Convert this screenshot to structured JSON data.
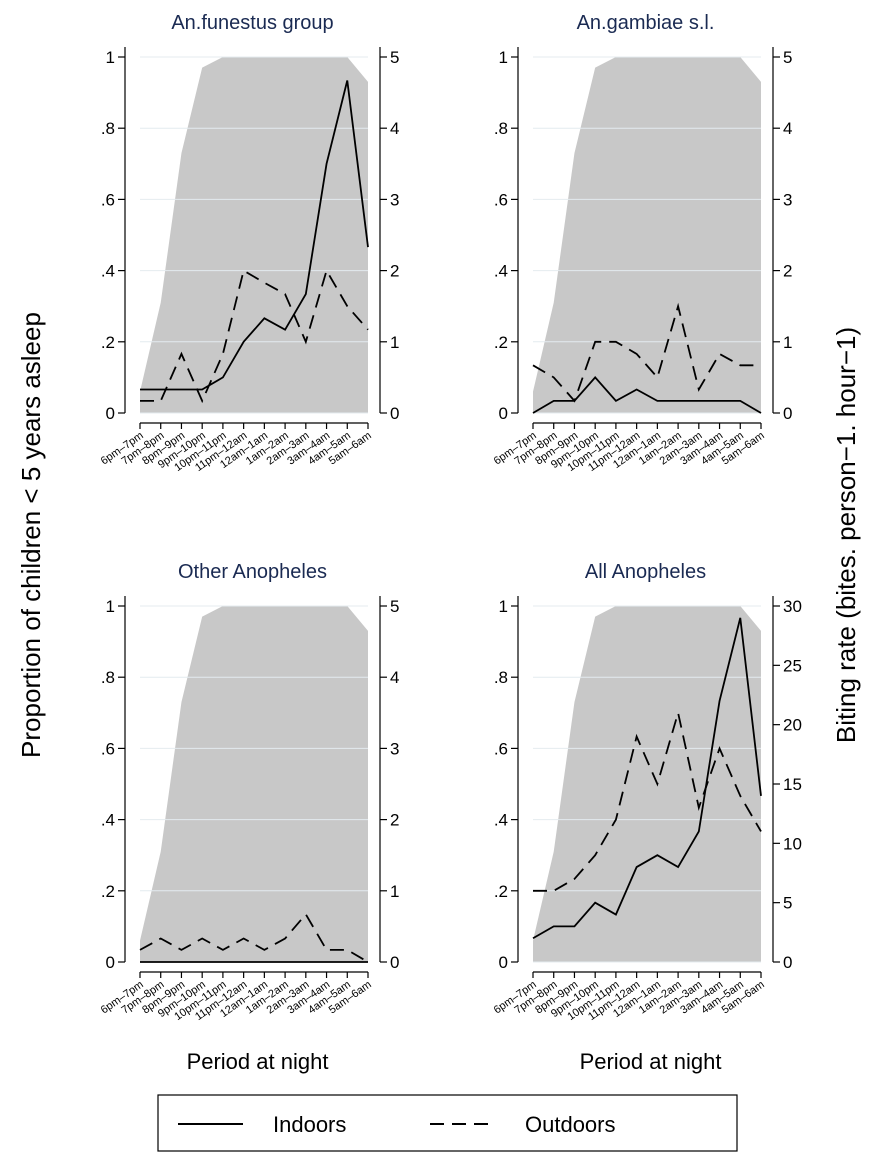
{
  "ylabel": "Proportion of children < 5 years asleep",
  "y2label": "Biting rate (bites. person−1. hour−1)",
  "chart_data": [
    {
      "type": "line",
      "title": "An.funestus group",
      "categories": [
        "6pm–7pm",
        "7pm–8pm",
        "8pm–9pm",
        "9pm–10pm",
        "10pm–11pm",
        "11pm–12am",
        "12am–1am",
        "1am–2am",
        "2am–3am",
        "3am–4am",
        "4am–5am",
        "5am–6am"
      ],
      "area": {
        "color": "#c8c8c8",
        "values": [
          0.06,
          0.31,
          0.73,
          0.97,
          1,
          1,
          1,
          1,
          1,
          1,
          1,
          0.93
        ]
      },
      "series": [
        {
          "name": "Indoors",
          "color": "#000000",
          "dash": false,
          "axis": "y2",
          "values": [
            0.33,
            0.33,
            0.33,
            0.33,
            0.5,
            1.0,
            1.33,
            1.17,
            1.67,
            3.5,
            4.67,
            2.33
          ]
        },
        {
          "name": "Outdoors",
          "color": "#000000",
          "dash": true,
          "axis": "y2",
          "values": [
            0.17,
            0.17,
            0.83,
            0.17,
            0.83,
            2.0,
            1.83,
            1.67,
            1.0,
            2.0,
            1.5,
            1.17
          ]
        }
      ],
      "ylim": [
        0,
        1
      ],
      "yticks": [
        0,
        {
          "value": 0.2,
          "label": ".2"
        },
        {
          "value": 0.4,
          "label": ".4"
        },
        {
          "value": 0.6,
          "label": ".6"
        },
        {
          "value": 0.8,
          "label": ".8"
        },
        1
      ],
      "y2lim": [
        0,
        5
      ],
      "y2ticks": [
        0,
        1,
        2,
        3,
        4,
        5
      ],
      "grid": true
    },
    {
      "type": "line",
      "title": "An.gambiae s.l.",
      "categories": [
        "6pm–7pm",
        "7pm–8pm",
        "8pm–9pm",
        "9pm–10pm",
        "10pm–11pm",
        "11pm–12am",
        "12am–1am",
        "1am–2am",
        "2am–3am",
        "3am–4am",
        "4am–5am",
        "5am–6am"
      ],
      "area": {
        "color": "#c8c8c8",
        "values": [
          0.06,
          0.31,
          0.73,
          0.97,
          1,
          1,
          1,
          1,
          1,
          1,
          1,
          0.93
        ]
      },
      "series": [
        {
          "name": "Indoors",
          "color": "#000000",
          "dash": false,
          "axis": "y2",
          "values": [
            0,
            0.17,
            0.17,
            0.5,
            0.17,
            0.33,
            0.17,
            0.17,
            0.17,
            0.17,
            0.17,
            0
          ]
        },
        {
          "name": "Outdoors",
          "color": "#000000",
          "dash": true,
          "axis": "y2",
          "values": [
            0.67,
            0.5,
            0.17,
            1.0,
            1.0,
            0.83,
            0.5,
            1.5,
            0.33,
            0.83,
            0.67,
            0.67
          ]
        }
      ],
      "ylim": [
        0,
        1
      ],
      "yticks": [
        0,
        {
          "value": 0.2,
          "label": ".2"
        },
        {
          "value": 0.4,
          "label": ".4"
        },
        {
          "value": 0.6,
          "label": ".6"
        },
        {
          "value": 0.8,
          "label": ".8"
        },
        1
      ],
      "y2lim": [
        0,
        5
      ],
      "y2ticks": [
        0,
        1,
        2,
        3,
        4,
        5
      ],
      "grid": true
    },
    {
      "type": "line",
      "title": "Other Anopheles",
      "xlabel": "Period at night",
      "categories": [
        "6pm–7pm",
        "7pm–8pm",
        "8pm–9pm",
        "9pm–10pm",
        "10pm–11pm",
        "11pm–12am",
        "12am–1am",
        "1am–2am",
        "2am–3am",
        "3am–4am",
        "4am–5am",
        "5am–6am"
      ],
      "area": {
        "color": "#c8c8c8",
        "values": [
          0.06,
          0.31,
          0.73,
          0.97,
          1,
          1,
          1,
          1,
          1,
          1,
          1,
          0.93
        ]
      },
      "series": [
        {
          "name": "Indoors",
          "color": "#000000",
          "dash": false,
          "axis": "y2",
          "values": [
            0,
            0,
            0,
            0,
            0,
            0,
            0,
            0,
            0,
            0,
            0,
            0
          ]
        },
        {
          "name": "Outdoors",
          "color": "#000000",
          "dash": true,
          "axis": "y2",
          "values": [
            0.17,
            0.33,
            0.17,
            0.33,
            0.17,
            0.33,
            0.17,
            0.33,
            0.67,
            0.17,
            0.17,
            0
          ]
        }
      ],
      "ylim": [
        0,
        1
      ],
      "yticks": [
        0,
        {
          "value": 0.2,
          "label": ".2"
        },
        {
          "value": 0.4,
          "label": ".4"
        },
        {
          "value": 0.6,
          "label": ".6"
        },
        {
          "value": 0.8,
          "label": ".8"
        },
        1
      ],
      "y2lim": [
        0,
        5
      ],
      "y2ticks": [
        0,
        1,
        2,
        3,
        4,
        5
      ],
      "grid": true
    },
    {
      "type": "line",
      "title": "All Anopheles",
      "xlabel": "Period at night",
      "categories": [
        "6pm–7pm",
        "7pm–8pm",
        "8pm–9pm",
        "9pm–10pm",
        "10pm–11pm",
        "11pm–12am",
        "12am–1am",
        "1am–2am",
        "2am–3am",
        "3am–4am",
        "4am–5am",
        "5am–6am"
      ],
      "area": {
        "color": "#c8c8c8",
        "values": [
          0.06,
          0.31,
          0.73,
          0.97,
          1,
          1,
          1,
          1,
          1,
          1,
          1,
          0.93
        ]
      },
      "series": [
        {
          "name": "Indoors",
          "color": "#000000",
          "dash": false,
          "axis": "y2",
          "values": [
            2,
            3,
            3,
            5,
            4,
            8,
            9,
            8,
            11,
            22,
            29,
            14
          ]
        },
        {
          "name": "Outdoors",
          "color": "#000000",
          "dash": true,
          "axis": "y2",
          "values": [
            6,
            6,
            7,
            9,
            12,
            19,
            15,
            21,
            13,
            18,
            14,
            11
          ]
        }
      ],
      "ylim": [
        0,
        1
      ],
      "yticks": [
        0,
        {
          "value": 0.2,
          "label": ".2"
        },
        {
          "value": 0.4,
          "label": ".4"
        },
        {
          "value": 0.6,
          "label": ".6"
        },
        {
          "value": 0.8,
          "label": ".8"
        },
        1
      ],
      "y2lim": [
        0,
        30
      ],
      "y2ticks": [
        0,
        5,
        10,
        15,
        20,
        25,
        30
      ],
      "grid": true
    }
  ]
}
